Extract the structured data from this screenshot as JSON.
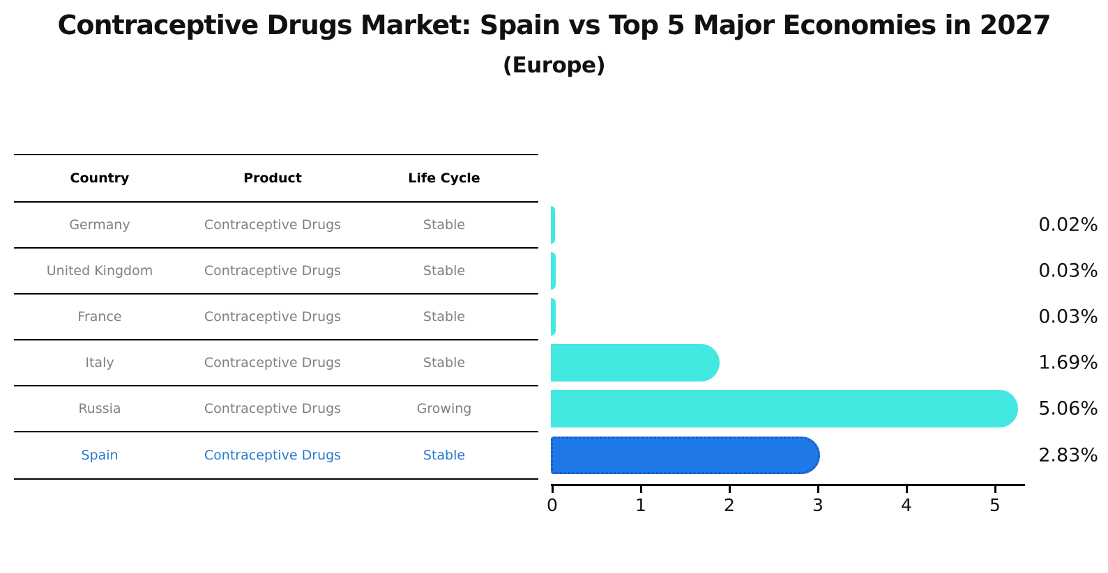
{
  "title": {
    "line1": "Contraceptive Drugs Market: Spain vs Top 5 Major Economies in 2027",
    "line2": "(Europe)"
  },
  "table": {
    "headers": [
      "Country",
      "Product",
      "Life Cycle"
    ],
    "rows": [
      {
        "country": "Germany",
        "product": "Contraceptive Drugs",
        "life_cycle": "Stable",
        "highlight": false
      },
      {
        "country": "United Kingdom",
        "product": "Contraceptive Drugs",
        "life_cycle": "Stable",
        "highlight": false
      },
      {
        "country": "France",
        "product": "Contraceptive Drugs",
        "life_cycle": "Stable",
        "highlight": false
      },
      {
        "country": "Italy",
        "product": "Contraceptive Drugs",
        "life_cycle": "Stable",
        "highlight": false
      },
      {
        "country": "Russia",
        "product": "Contraceptive Drugs",
        "life_cycle": "Growing",
        "highlight": false
      },
      {
        "country": "Spain",
        "product": "Contraceptive Drugs",
        "life_cycle": "Stable",
        "highlight": true
      }
    ]
  },
  "chart_data": {
    "type": "bar",
    "orientation": "horizontal",
    "title": "Contraceptive Drugs Market: Spain vs Top 5 Major Economies in 2027 (Europe)",
    "categories": [
      "Germany",
      "United Kingdom",
      "France",
      "Italy",
      "Russia",
      "Spain"
    ],
    "values": [
      0.02,
      0.03,
      0.03,
      1.69,
      5.06,
      2.83
    ],
    "value_labels": [
      "0.02%",
      "0.03%",
      "0.03%",
      "1.69%",
      "5.06%",
      "2.83%"
    ],
    "x_ticks": [
      "0",
      "1",
      "2",
      "3",
      "4",
      "5"
    ],
    "xlim": [
      0,
      5.35
    ],
    "highlight_category": "Spain",
    "grid": false,
    "legend": "none",
    "colors": {
      "bar_default": "#43E8E1",
      "bar_highlight": "#1E78E8",
      "bar_highlight_border": "#1A5ABF",
      "row_text": "#808080",
      "highlight_text": "#2878CE",
      "axis": "#000000",
      "value_label": "#111111"
    }
  }
}
